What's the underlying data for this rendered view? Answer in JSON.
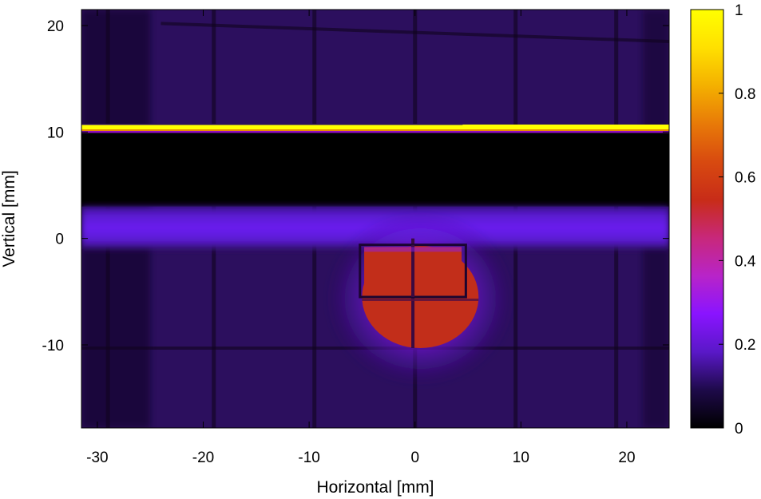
{
  "chart_data": {
    "type": "heatmap",
    "xlabel": "Horizontal [mm]",
    "ylabel": "Vertical [mm]",
    "xlim": [
      -31.5,
      24
    ],
    "ylim": [
      -17.8,
      21.5
    ],
    "x_ticks": [
      -30,
      -20,
      -10,
      0,
      10,
      20
    ],
    "y_ticks": [
      -10,
      0,
      10,
      20
    ],
    "colorbar": {
      "range": [
        0,
        1
      ],
      "ticks": [
        0,
        0.2,
        0.4,
        0.6,
        0.8,
        1
      ],
      "colormap": [
        "#000000",
        "#1e0a4a",
        "#5a18c8",
        "#8a14ff",
        "#b824c8",
        "#c8287a",
        "#c82c18",
        "#d84a10",
        "#e87a08",
        "#f4b000",
        "#ffe000",
        "#ffff00"
      ]
    },
    "background_level": 0.07,
    "features": [
      {
        "name": "bright beam line",
        "x_range": [
          -31.5,
          24
        ],
        "y_range": [
          10.1,
          10.7
        ],
        "value": 1.0
      },
      {
        "name": "dark band",
        "x_range": [
          -31.5,
          24
        ],
        "y_range": [
          3,
          10
        ],
        "value": 0.0
      },
      {
        "name": "glowing band",
        "x_range": [
          -31.5,
          24
        ],
        "y_range": [
          -1,
          3
        ],
        "value": 0.18
      },
      {
        "name": "central hot spot",
        "center": [
          0.5,
          -5.5
        ],
        "radius": [
          5.5,
          4.8
        ],
        "value": 0.55
      }
    ]
  }
}
